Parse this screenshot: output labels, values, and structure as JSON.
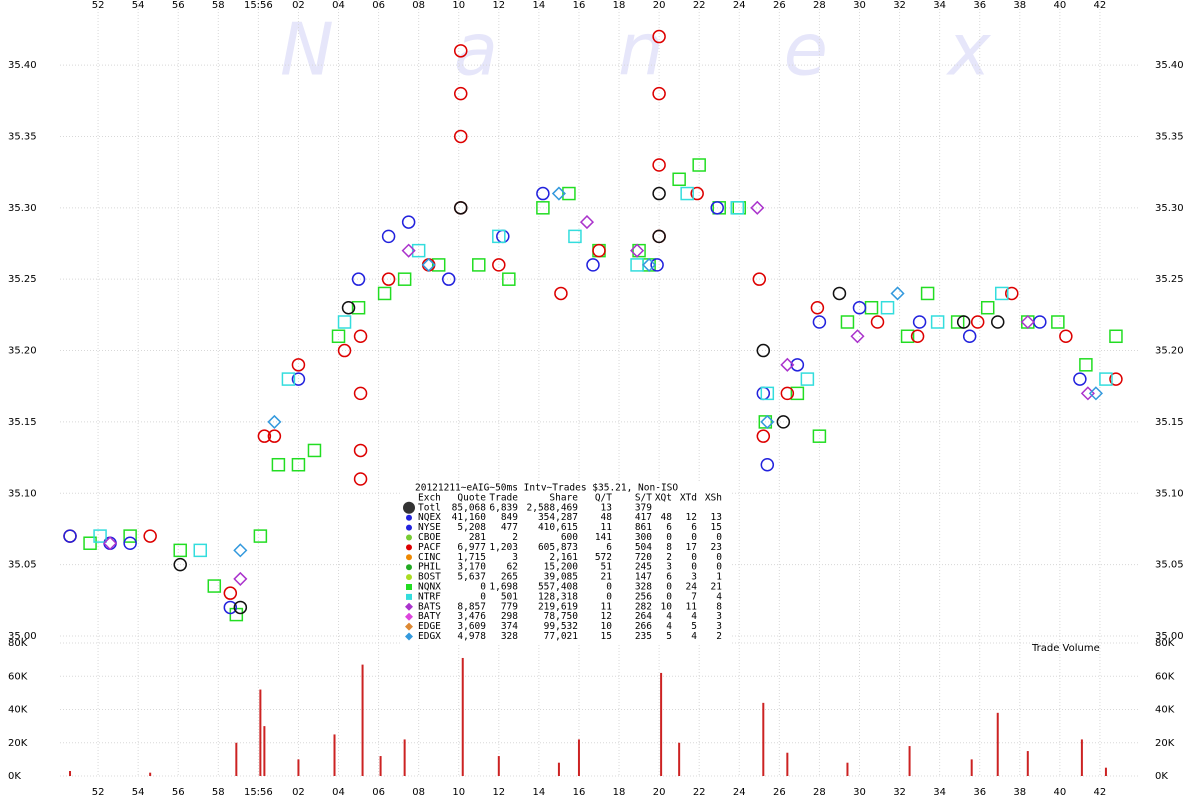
{
  "watermark": "Nanex",
  "chart_data": [
    {
      "type": "scatter",
      "xlim": [
        57350.1,
        57404
      ],
      "xticks": [
        {
          "value": 57352,
          "label": "52"
        },
        {
          "value": 57354,
          "label": "54"
        },
        {
          "value": 57356,
          "label": "56"
        },
        {
          "value": 57358,
          "label": "58"
        },
        {
          "value": 57360,
          "label": "15:56"
        },
        {
          "value": 57362,
          "label": "02"
        },
        {
          "value": 57364,
          "label": "04"
        },
        {
          "value": 57366,
          "label": "06"
        },
        {
          "value": 57368,
          "label": "08"
        },
        {
          "value": 57370,
          "label": "10"
        },
        {
          "value": 57372,
          "label": "12"
        },
        {
          "value": 57374,
          "label": "14"
        },
        {
          "value": 57376,
          "label": "16"
        },
        {
          "value": 57378,
          "label": "18"
        },
        {
          "value": 57380,
          "label": "20"
        },
        {
          "value": 57382,
          "label": "22"
        },
        {
          "value": 57384,
          "label": "24"
        },
        {
          "value": 57386,
          "label": "26"
        },
        {
          "value": 57388,
          "label": "28"
        },
        {
          "value": 57390,
          "label": "30"
        },
        {
          "value": 57392,
          "label": "32"
        },
        {
          "value": 57394,
          "label": "34"
        },
        {
          "value": 57396,
          "label": "36"
        },
        {
          "value": 57398,
          "label": "38"
        },
        {
          "value": 57400,
          "label": "40"
        },
        {
          "value": 57402,
          "label": "42"
        }
      ],
      "ylim": [
        35.0,
        35.44
      ],
      "yticks": [
        {
          "value": 35.0,
          "label": "35.00"
        },
        {
          "value": 35.05,
          "label": "35.05"
        },
        {
          "value": 35.1,
          "label": "35.10"
        },
        {
          "value": 35.15,
          "label": "35.15"
        },
        {
          "value": 35.2,
          "label": "35.20"
        },
        {
          "value": 35.25,
          "label": "35.25"
        },
        {
          "value": 35.3,
          "label": "35.30"
        },
        {
          "value": 35.35,
          "label": "35.35"
        },
        {
          "value": 35.4,
          "label": "35.40"
        }
      ],
      "grid": true,
      "series": [
        {
          "color": "#22dd22",
          "marker": "square",
          "x": [
            57351.6,
            57353.6,
            57356.1,
            57357.8,
            57358.9,
            57360.1,
            57361.0,
            57362.0,
            57362.8,
            57364.0,
            57365.0,
            57366.3,
            57367.3,
            57369.0,
            57371.0,
            57372.5,
            57374.2,
            57375.5,
            57377.0,
            57379.0,
            57379.5,
            57381.0,
            57382.0,
            57383.0,
            57384.0,
            57385.3,
            57386.9,
            57388.0,
            57389.4,
            57390.6,
            57392.4,
            57393.4,
            57394.9,
            57396.4,
            57398.4,
            57399.9,
            57401.3,
            57402.8
          ],
          "values": [
            35.065,
            35.07,
            35.06,
            35.035,
            35.015,
            35.07,
            35.12,
            35.12,
            35.13,
            35.21,
            35.23,
            35.24,
            35.25,
            35.26,
            35.26,
            35.25,
            35.3,
            35.31,
            35.27,
            35.27,
            35.26,
            35.32,
            35.33,
            35.3,
            35.3,
            35.15,
            35.17,
            35.14,
            35.22,
            35.23,
            35.21,
            35.24,
            35.22,
            35.23,
            35.22,
            35.22,
            35.19,
            35.21
          ]
        },
        {
          "color": "#dd0000",
          "marker": "circle",
          "x": [
            57350.6,
            57354.6,
            57358.6,
            57360.3,
            57360.8,
            57362.0,
            57364.3,
            57365.1,
            57365.1,
            57365.1,
            57365.1,
            57366.5,
            57368.5,
            57370.1,
            57370.1,
            57370.1,
            57370.1,
            57372.0,
            57375.1,
            57377.0,
            57380.0,
            57380.0,
            57380.0,
            57380.0,
            57381.9,
            57385.0,
            57385.2,
            57386.4,
            57387.9,
            57390.9,
            57392.9,
            57395.9,
            57397.6,
            57400.3,
            57402.8
          ],
          "values": [
            35.07,
            35.07,
            35.03,
            35.14,
            35.14,
            35.19,
            35.2,
            35.11,
            35.13,
            35.17,
            35.21,
            35.25,
            35.26,
            35.3,
            35.35,
            35.38,
            35.41,
            35.26,
            35.24,
            35.27,
            35.28,
            35.33,
            35.38,
            35.42,
            35.31,
            35.25,
            35.14,
            35.17,
            35.23,
            35.22,
            35.21,
            35.22,
            35.24,
            35.21,
            35.18
          ]
        },
        {
          "color": "#2222dd",
          "marker": "circle",
          "x": [
            57350.6,
            57352.6,
            57353.6,
            57358.6,
            57362.0,
            57365.0,
            57366.5,
            57367.5,
            57369.5,
            57372.2,
            57374.2,
            57376.7,
            57379.9,
            57382.9,
            57385.2,
            57385.4,
            57386.9,
            57388.0,
            57390.0,
            57393.0,
            57395.5,
            57399.0,
            57401.0
          ],
          "values": [
            35.07,
            35.065,
            35.065,
            35.02,
            35.18,
            35.25,
            35.28,
            35.29,
            35.25,
            35.28,
            35.31,
            35.26,
            35.26,
            35.3,
            35.17,
            35.12,
            35.19,
            35.22,
            35.23,
            35.22,
            35.21,
            35.22,
            35.18
          ]
        },
        {
          "color": "#111111",
          "marker": "circle",
          "x": [
            57356.1,
            57359.1,
            57364.5,
            57370.1,
            57380.0,
            57380.0,
            57385.2,
            57386.2,
            57389.0,
            57395.2,
            57396.9
          ],
          "values": [
            35.05,
            35.02,
            35.23,
            35.3,
            35.31,
            35.28,
            35.2,
            35.15,
            35.24,
            35.22,
            35.22
          ]
        },
        {
          "color": "#33dddd",
          "marker": "square",
          "x": [
            57352.1,
            57357.1,
            57361.5,
            57364.3,
            57368.0,
            57372.0,
            57375.8,
            57378.9,
            57381.4,
            57383.9,
            57385.4,
            57387.4,
            57391.4,
            57393.9,
            57397.1,
            57402.3
          ],
          "values": [
            35.07,
            35.06,
            35.18,
            35.22,
            35.27,
            35.28,
            35.28,
            35.26,
            35.31,
            35.3,
            35.17,
            35.18,
            35.23,
            35.22,
            35.24,
            35.18
          ]
        },
        {
          "color": "#aa33cc",
          "marker": "diamond",
          "x": [
            57352.6,
            57359.1,
            57367.5,
            57376.4,
            57378.9,
            57384.9,
            57386.4,
            57389.9,
            57398.4,
            57401.4
          ],
          "values": [
            35.065,
            35.04,
            35.27,
            35.29,
            35.27,
            35.3,
            35.19,
            35.21,
            35.22,
            35.17
          ]
        },
        {
          "color": "#3399dd",
          "marker": "diamond",
          "x": [
            57359.1,
            57360.8,
            57368.5,
            57375.0,
            57379.5,
            57385.4,
            57391.9,
            57401.8
          ],
          "values": [
            35.06,
            35.15,
            35.26,
            35.31,
            35.26,
            35.15,
            35.24,
            35.17
          ]
        }
      ]
    },
    {
      "type": "bar",
      "title": "Trade Volume",
      "color": "#cc2222",
      "xlim": [
        57350.1,
        57404
      ],
      "xticks": [
        {
          "value": 57352,
          "label": "52"
        },
        {
          "value": 57354,
          "label": "54"
        },
        {
          "value": 57356,
          "label": "56"
        },
        {
          "value": 57358,
          "label": "58"
        },
        {
          "value": 57360,
          "label": "15:56"
        },
        {
          "value": 57362,
          "label": "02"
        },
        {
          "value": 57364,
          "label": "04"
        },
        {
          "value": 57366,
          "label": "06"
        },
        {
          "value": 57368,
          "label": "08"
        },
        {
          "value": 57370,
          "label": "10"
        },
        {
          "value": 57372,
          "label": "12"
        },
        {
          "value": 57374,
          "label": "14"
        },
        {
          "value": 57376,
          "label": "16"
        },
        {
          "value": 57378,
          "label": "18"
        },
        {
          "value": 57380,
          "label": "20"
        },
        {
          "value": 57382,
          "label": "22"
        },
        {
          "value": 57384,
          "label": "24"
        },
        {
          "value": 57386,
          "label": "26"
        },
        {
          "value": 57388,
          "label": "28"
        },
        {
          "value": 57390,
          "label": "30"
        },
        {
          "value": 57392,
          "label": "32"
        },
        {
          "value": 57394,
          "label": "34"
        },
        {
          "value": 57396,
          "label": "36"
        },
        {
          "value": 57398,
          "label": "38"
        },
        {
          "value": 57400,
          "label": "40"
        },
        {
          "value": 57402,
          "label": "42"
        }
      ],
      "ylim": [
        0,
        80000
      ],
      "yticks": [
        {
          "value": 0,
          "label": "0K"
        },
        {
          "value": 20000,
          "label": "20K"
        },
        {
          "value": 40000,
          "label": "40K"
        },
        {
          "value": 60000,
          "label": "60K"
        },
        {
          "value": 80000,
          "label": "80K"
        }
      ],
      "x": [
        57350.6,
        57354.6,
        57358.9,
        57360.1,
        57360.3,
        57362.0,
        57363.8,
        57365.2,
        57366.1,
        57367.3,
        57370.2,
        57372.0,
        57375.0,
        57376.0,
        57380.1,
        57381.0,
        57385.2,
        57386.4,
        57389.4,
        57392.5,
        57395.6,
        57396.9,
        57398.4,
        57401.1,
        57402.3
      ],
      "values": [
        3000,
        2000,
        20000,
        52000,
        30000,
        10000,
        25000,
        67000,
        12000,
        22000,
        71000,
        12000,
        8000,
        22000,
        62000,
        20000,
        44000,
        14000,
        8000,
        18000,
        10000,
        38000,
        15000,
        22000,
        5000
      ]
    }
  ],
  "table": {
    "title": "20121211~eAIG~50ms Intv~Trades $35.21, Non-ISO",
    "columns": [
      "Exch",
      "Quote",
      "Trade",
      "Share",
      "Q/T",
      "S/T",
      "XQt",
      "XTd",
      "XSh"
    ],
    "rows": [
      {
        "color": "#333333",
        "marker": "big",
        "cells": [
          "Totl",
          "85,068",
          "6,839",
          "2,588,469",
          "13",
          "379"
        ]
      },
      {
        "color": "#2222dd",
        "marker": "dot",
        "cells": [
          "NQEX",
          "41,160",
          "849",
          "354,287",
          "48",
          "417",
          "48",
          "12",
          "13"
        ]
      },
      {
        "color": "#2222dd",
        "marker": "dot",
        "cells": [
          "NYSE",
          "5,208",
          "477",
          "410,615",
          "11",
          "861",
          "6",
          "6",
          "15"
        ]
      },
      {
        "color": "#77cc33",
        "marker": "dot",
        "cells": [
          "CBOE",
          "281",
          "2",
          "600",
          "141",
          "300",
          "0",
          "0",
          "0"
        ]
      },
      {
        "color": "#dd0000",
        "marker": "dot",
        "cells": [
          "PACF",
          "6,977",
          "1,203",
          "605,873",
          "6",
          "504",
          "8",
          "17",
          "23"
        ]
      },
      {
        "color": "#ee8800",
        "marker": "dot",
        "cells": [
          "CINC",
          "1,715",
          "3",
          "2,161",
          "572",
          "720",
          "2",
          "0",
          "0"
        ]
      },
      {
        "color": "#22aa22",
        "marker": "dot",
        "cells": [
          "PHIL",
          "3,170",
          "62",
          "15,200",
          "51",
          "245",
          "3",
          "0",
          "0"
        ]
      },
      {
        "color": "#aadd22",
        "marker": "dot",
        "cells": [
          "BOST",
          "5,637",
          "265",
          "39,085",
          "21",
          "147",
          "6",
          "3",
          "1"
        ]
      },
      {
        "color": "#22dd22",
        "marker": "square",
        "cells": [
          "NQNX",
          "0",
          "1,698",
          "557,408",
          "0",
          "328",
          "0",
          "24",
          "21"
        ]
      },
      {
        "color": "#33dddd",
        "marker": "square",
        "cells": [
          "NTRF",
          "0",
          "501",
          "128,318",
          "0",
          "256",
          "0",
          "7",
          "4"
        ]
      },
      {
        "color": "#aa33cc",
        "marker": "diamond",
        "cells": [
          "BATS",
          "8,857",
          "779",
          "219,619",
          "11",
          "282",
          "10",
          "11",
          "8"
        ]
      },
      {
        "color": "#dd44dd",
        "marker": "diamond",
        "cells": [
          "BATY",
          "3,476",
          "298",
          "78,750",
          "12",
          "264",
          "4",
          "4",
          "3"
        ]
      },
      {
        "color": "#dd8833",
        "marker": "diamond",
        "cells": [
          "EDGE",
          "3,609",
          "374",
          "99,532",
          "10",
          "266",
          "4",
          "5",
          "3"
        ]
      },
      {
        "color": "#3399dd",
        "marker": "diamond",
        "cells": [
          "EDGX",
          "4,978",
          "328",
          "77,021",
          "15",
          "235",
          "5",
          "4",
          "2"
        ]
      }
    ]
  }
}
